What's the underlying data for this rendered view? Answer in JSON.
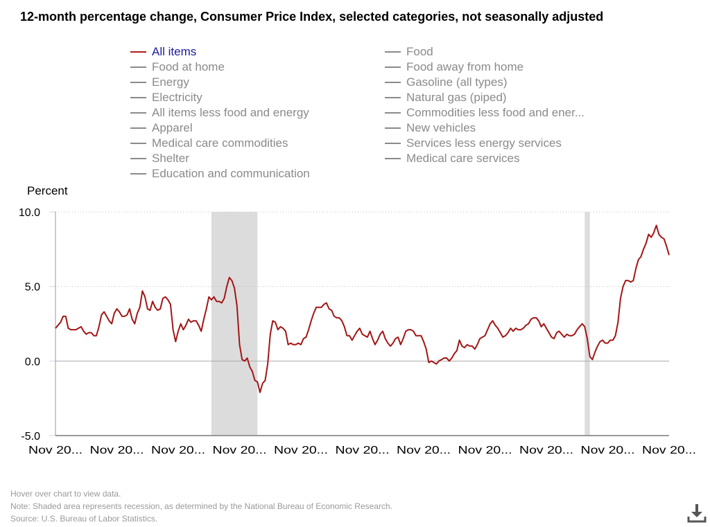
{
  "title": "12-month percentage change, Consumer Price Index, selected categories, not seasonally adjusted",
  "legend": {
    "left": [
      "All items",
      "Food at home",
      "Energy",
      "Electricity",
      "All items less food and energy",
      "Apparel",
      "Medical care commodities",
      "Shelter",
      "Education and communication"
    ],
    "right": [
      "Food",
      "Food away from home",
      "Gasoline (all types)",
      "Natural gas (piped)",
      "Commodities less food and ener...",
      "New vehicles",
      "Services less energy services",
      "Medical care services"
    ]
  },
  "footer": {
    "hover": "Hover over chart to view data.",
    "note": "Note: Shaded area represents recession, as determined by the National Bureau of Economic Research.",
    "source": "Source: U.S. Bureau of Labor Statistics."
  },
  "icons": {
    "download": "download-icon"
  },
  "chart_data": {
    "type": "line",
    "title": "12-month percentage change, Consumer Price Index, selected categories, not seasonally adjusted",
    "ylabel": "Percent",
    "ylim": [
      -5,
      10
    ],
    "yticks": [
      "10.0",
      "5.0",
      "0.0",
      "-5.0"
    ],
    "ytick_values": [
      10,
      5,
      0,
      -5
    ],
    "xtick_labels": [
      "Nov 20...",
      "Nov 20...",
      "Nov 20...",
      "Nov 20...",
      "Nov 20...",
      "Nov 20...",
      "Nov 20...",
      "Nov 20...",
      "Nov 20...",
      "Nov 20...",
      "Nov 20..."
    ],
    "x_start": "2002-11",
    "x_end": "2022-11",
    "x_frequency": "monthly",
    "xtick_dates": [
      "2002-11",
      "2004-11",
      "2006-11",
      "2008-11",
      "2010-11",
      "2012-11",
      "2014-11",
      "2016-11",
      "2018-11",
      "2020-11",
      "2022-11"
    ],
    "grid": "horizontal dotted",
    "recessions": [
      [
        "2007-12",
        "2009-06"
      ],
      [
        "2020-02",
        "2020-04"
      ]
    ],
    "series_color": "#a31515",
    "recession_color": "#dcdcdc",
    "series": [
      {
        "name": "All items",
        "values": [
          2.2,
          2.4,
          2.6,
          3.0,
          3.0,
          2.2,
          2.1,
          2.1,
          2.1,
          2.2,
          2.3,
          2.0,
          1.8,
          1.9,
          1.9,
          1.7,
          1.7,
          2.3,
          3.1,
          3.3,
          3.0,
          2.7,
          2.5,
          3.2,
          3.5,
          3.3,
          3.0,
          3.0,
          3.1,
          3.5,
          2.8,
          2.5,
          3.2,
          3.6,
          4.7,
          4.3,
          3.5,
          3.4,
          4.0,
          3.6,
          3.4,
          3.5,
          4.2,
          4.3,
          4.1,
          3.8,
          2.1,
          1.3,
          2.0,
          2.5,
          2.1,
          2.4,
          2.8,
          2.6,
          2.7,
          2.7,
          2.4,
          2.0,
          2.8,
          3.5,
          4.3,
          4.1,
          4.3,
          4.0,
          4.0,
          3.9,
          4.2,
          5.0,
          5.6,
          5.4,
          4.9,
          3.7,
          1.1,
          0.1,
          0.0,
          0.2,
          -0.4,
          -0.7,
          -1.3,
          -1.4,
          -2.1,
          -1.5,
          -1.3,
          -0.2,
          1.8,
          2.7,
          2.6,
          2.1,
          2.3,
          2.2,
          2.0,
          1.1,
          1.2,
          1.1,
          1.1,
          1.2,
          1.1,
          1.5,
          1.6,
          2.1,
          2.7,
          3.2,
          3.6,
          3.6,
          3.6,
          3.8,
          3.9,
          3.5,
          3.4,
          3.0,
          2.9,
          2.9,
          2.7,
          2.3,
          1.7,
          1.7,
          1.4,
          1.7,
          2.0,
          2.2,
          1.8,
          1.7,
          1.6,
          2.0,
          1.5,
          1.1,
          1.4,
          1.8,
          2.0,
          1.5,
          1.2,
          1.0,
          1.2,
          1.5,
          1.6,
          1.1,
          1.5,
          2.0,
          2.1,
          2.1,
          2.0,
          1.7,
          1.7,
          1.7,
          1.3,
          0.8,
          -0.1,
          0.0,
          -0.1,
          -0.2,
          0.0,
          0.1,
          0.2,
          0.2,
          0.0,
          0.2,
          0.5,
          0.7,
          1.4,
          1.0,
          0.9,
          1.1,
          1.0,
          1.0,
          0.8,
          1.1,
          1.5,
          1.6,
          1.7,
          2.1,
          2.5,
          2.7,
          2.4,
          2.2,
          1.9,
          1.6,
          1.7,
          1.9,
          2.2,
          2.0,
          2.2,
          2.1,
          2.1,
          2.2,
          2.4,
          2.5,
          2.8,
          2.9,
          2.9,
          2.7,
          2.3,
          2.5,
          2.2,
          1.9,
          1.6,
          1.5,
          1.9,
          2.0,
          1.8,
          1.6,
          1.8,
          1.7,
          1.7,
          1.8,
          2.1,
          2.3,
          2.5,
          2.3,
          1.5,
          0.3,
          0.1,
          0.6,
          1.0,
          1.3,
          1.4,
          1.2,
          1.2,
          1.4,
          1.4,
          1.7,
          2.6,
          4.2,
          5.0,
          5.4,
          5.4,
          5.3,
          5.4,
          6.2,
          6.8,
          7.0,
          7.5,
          7.9,
          8.5,
          8.3,
          8.6,
          9.1,
          8.5,
          8.3,
          8.2,
          7.7,
          7.1
        ]
      }
    ]
  }
}
